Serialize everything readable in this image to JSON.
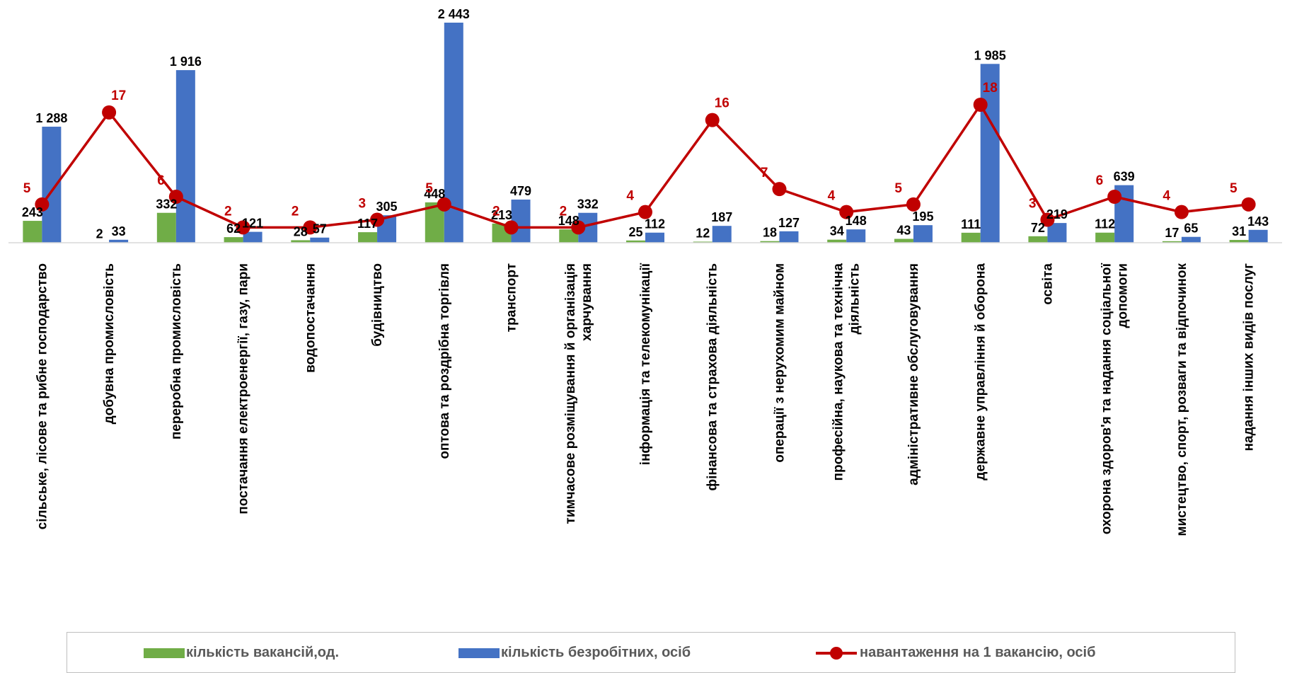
{
  "chart_data": {
    "type": "bar",
    "categories": [
      "сільське, лісове та рибне господарство",
      "добувна промисловість",
      "переробна промисловість",
      "постачання електроенергії, газу, пари",
      "водопостачання",
      "будівництво",
      "оптова та роздрібна торгівля",
      "транспорт",
      "тимчасове розміщування й організація харчування",
      "інформація та телекомунікації",
      "фінансова та страхова діяльність",
      "операції з нерухомим майном",
      "професійна, наукова та технічна діяльність",
      "адміністративне обслуговування",
      "державне управління й оборона",
      "освіта",
      "охорона здоров'я та надання соціальної допомоги",
      "мистецтво, спорт, розваги та відпочинок",
      "надання інших видів послуг"
    ],
    "category_lines": [
      [
        "сільське, лісове та рибне господарство"
      ],
      [
        "добувна промисловість"
      ],
      [
        "переробна промисловість"
      ],
      [
        "постачання електроенергії, газу, пари"
      ],
      [
        "водопостачання"
      ],
      [
        "будівництво"
      ],
      [
        "оптова та роздрібна торгівля"
      ],
      [
        "транспорт"
      ],
      [
        "тимчасове розміщування й організація",
        "харчування"
      ],
      [
        "інформація та телекомунікації"
      ],
      [
        "фінансова та страхова діяльність"
      ],
      [
        "операції з нерухомим майном"
      ],
      [
        "професійна, наукова та технічна",
        "діяльність"
      ],
      [
        "адміністративне обслуговування"
      ],
      [
        "державне управління й оборона"
      ],
      [
        "освіта"
      ],
      [
        "охорона здоров'я та надання соціальної",
        "допомоги"
      ],
      [
        "мистецтво, спорт, розваги та відпочинок"
      ],
      [
        "надання інших видів послуг"
      ]
    ],
    "series": [
      {
        "name": "кількість вакансій,од.",
        "kind": "bar",
        "color": "#70ad47",
        "values": [
          243,
          2,
          332,
          62,
          28,
          117,
          448,
          213,
          148,
          25,
          12,
          18,
          34,
          43,
          111,
          72,
          112,
          17,
          31
        ],
        "labels": [
          "243",
          "2",
          "332",
          "62",
          "28",
          "117",
          "448",
          "213",
          "148",
          "25",
          "12",
          "18",
          "34",
          "43",
          "111",
          "72",
          "112",
          "17",
          "31"
        ]
      },
      {
        "name": "кількість безробітних, осіб",
        "kind": "bar",
        "color": "#4472c4",
        "values": [
          1288,
          33,
          1916,
          121,
          57,
          305,
          2443,
          479,
          332,
          112,
          187,
          127,
          148,
          195,
          1985,
          219,
          639,
          65,
          143
        ],
        "labels": [
          "1 288",
          "33",
          "1 916",
          "121",
          "57",
          "305",
          "2 443",
          "479",
          "332",
          "112",
          "187",
          "127",
          "148",
          "195",
          "1 985",
          "219",
          "639",
          "65",
          "143"
        ]
      },
      {
        "name": "навантаження на 1 вакансію, осіб",
        "kind": "line",
        "color": "#c00000",
        "secondary_axis": true,
        "values": [
          5,
          17,
          6,
          2,
          2,
          3,
          5,
          2,
          2,
          4,
          16,
          7,
          4,
          5,
          18,
          3,
          6,
          4,
          5
        ],
        "labels": [
          "5",
          "17",
          "6",
          "2",
          "2",
          "3",
          "5",
          "2",
          "2",
          "4",
          "16",
          "7",
          "4",
          "5",
          "18",
          "3",
          "6",
          "4",
          "5"
        ]
      }
    ],
    "ylim": [
      0,
      2443
    ],
    "y2lim": [
      0,
      30
    ],
    "grid": false,
    "legend_position": "bottom"
  }
}
